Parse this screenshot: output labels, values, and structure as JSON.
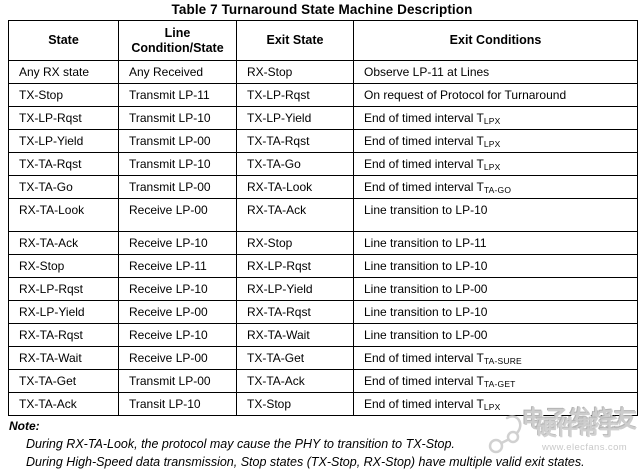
{
  "title": "Table 7 Turnaround State Machine Description",
  "table": {
    "headers": [
      "State",
      "Line Condition/State",
      "Exit State",
      "Exit Conditions"
    ],
    "rows": [
      {
        "cells": [
          {
            "text": "Any RX state"
          },
          {
            "text": "Any Received"
          },
          {
            "text": "RX-Stop"
          },
          {
            "text": "Observe LP-11 at Lines"
          }
        ]
      },
      {
        "cells": [
          {
            "text": "TX-Stop"
          },
          {
            "text": "Transmit LP-11"
          },
          {
            "text": "TX-LP-Rqst"
          },
          {
            "text": "On request of Protocol for Turnaround"
          }
        ]
      },
      {
        "cells": [
          {
            "text": "TX-LP-Rqst"
          },
          {
            "text": "Transmit LP-10"
          },
          {
            "text": "TX-LP-Yield"
          },
          {
            "text": "End of timed interval T",
            "sub": "LPX"
          }
        ]
      },
      {
        "cells": [
          {
            "text": "TX-LP-Yield"
          },
          {
            "text": "Transmit LP-00"
          },
          {
            "text": "TX-TA-Rqst"
          },
          {
            "text": "End of timed interval T",
            "sub": "LPX"
          }
        ]
      },
      {
        "cells": [
          {
            "text": "TX-TA-Rqst"
          },
          {
            "text": "Transmit LP-10"
          },
          {
            "text": "TX-TA-Go"
          },
          {
            "text": "End of timed interval T",
            "sub": "LPX"
          }
        ]
      },
      {
        "cells": [
          {
            "text": "TX-TA-Go"
          },
          {
            "text": "Transmit LP-00"
          },
          {
            "text": "RX-TA-Look"
          },
          {
            "text": "End of timed interval T",
            "sub": "TA-GO"
          }
        ]
      },
      {
        "cells": [
          {
            "text": "RX-TA-Look"
          },
          {
            "text": "Receive LP-00"
          },
          {
            "text": "RX-TA-Ack"
          },
          {
            "text": "Line transition to LP-10"
          }
        ]
      },
      {
        "cells": [
          {
            "text": "RX-TA-Ack"
          },
          {
            "text": "Receive LP-10"
          },
          {
            "text": "RX-Stop"
          },
          {
            "text": "Line transition to LP-11"
          }
        ]
      },
      {
        "cells": [
          {
            "text": "RX-Stop"
          },
          {
            "text": "Receive LP-11"
          },
          {
            "text": "RX-LP-Rqst"
          },
          {
            "text": "Line transition to LP-10"
          }
        ]
      },
      {
        "cells": [
          {
            "text": "RX-LP-Rqst"
          },
          {
            "text": "Receive LP-10"
          },
          {
            "text": "RX-LP-Yield"
          },
          {
            "text": "Line transition to LP-00"
          }
        ]
      },
      {
        "cells": [
          {
            "text": "RX-LP-Yield"
          },
          {
            "text": "Receive LP-00"
          },
          {
            "text": "RX-TA-Rqst"
          },
          {
            "text": "Line transition to LP-10"
          }
        ]
      },
      {
        "cells": [
          {
            "text": "RX-TA-Rqst"
          },
          {
            "text": "Receive LP-10"
          },
          {
            "text": "RX-TA-Wait"
          },
          {
            "text": "Line transition to LP-00"
          }
        ]
      },
      {
        "cells": [
          {
            "text": "RX-TA-Wait"
          },
          {
            "text": "Receive LP-00"
          },
          {
            "text": "TX-TA-Get"
          },
          {
            "text": "End of timed interval T",
            "sub": "TA-SURE"
          }
        ]
      },
      {
        "cells": [
          {
            "text": "TX-TA-Get"
          },
          {
            "text": "Transmit LP-00"
          },
          {
            "text": "TX-TA-Ack"
          },
          {
            "text": "End of timed interval T",
            "sub": "TA-GET"
          }
        ]
      },
      {
        "cells": [
          {
            "text": "TX-TA-Ack"
          },
          {
            "text": "Transit LP-10"
          },
          {
            "text": "TX-Stop"
          },
          {
            "text": "End of timed interval T",
            "sub": "LPX"
          }
        ]
      }
    ]
  },
  "notes": {
    "label": "Note:",
    "items": [
      "During RX-TA-Look, the protocol may cause the PHY to transition to TX-Stop.",
      "During High-Speed data transmission, Stop states (TX-Stop, RX-Stop) have multiple valid exit states."
    ]
  },
  "watermark": {
    "brand": "电子发烧友",
    "tagline": "硬件帮手",
    "site": "www.elecfans.com",
    "color": "#cdcdcd"
  },
  "colors": {
    "text": "#000000",
    "border": "#000000",
    "background": "#ffffff"
  }
}
